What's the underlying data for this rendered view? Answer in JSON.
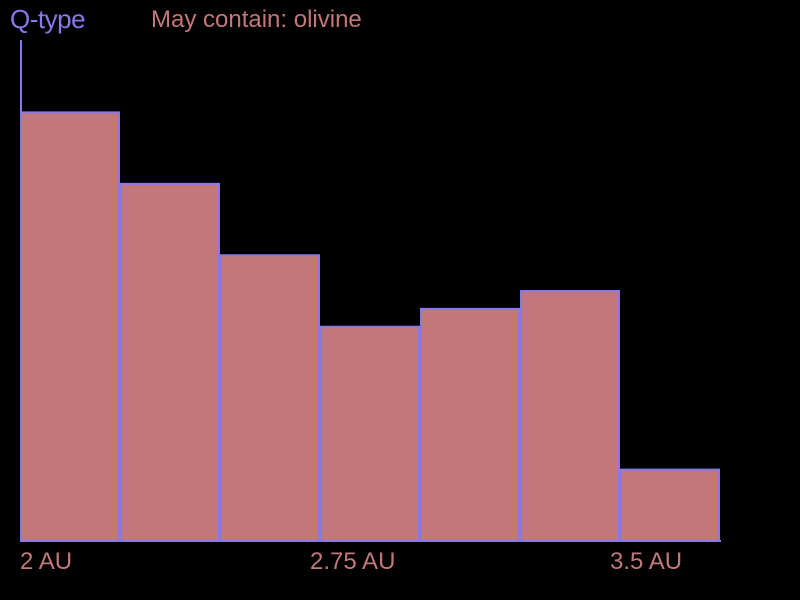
{
  "colors": {
    "background": "#000000",
    "accent": "#8878E8",
    "bar_fill": "#C27878",
    "label": "#C27878"
  },
  "chart_data": {
    "type": "bar",
    "title": "Q-type",
    "subtitle": "May contain: olivine",
    "x_unit": "AU",
    "bin_edges": [
      2.0,
      2.25,
      2.5,
      2.75,
      3.0,
      3.25,
      3.5,
      3.75
    ],
    "values": [
      600,
      500,
      400,
      300,
      325,
      350,
      100
    ],
    "ylim": [
      0,
      700
    ],
    "x_ticks": [
      {
        "value": 2.0,
        "label": "2 AU"
      },
      {
        "value": 2.75,
        "label": "2.75 AU"
      },
      {
        "value": 3.5,
        "label": "3.5 AU"
      }
    ],
    "grid": false,
    "legend": "none"
  }
}
